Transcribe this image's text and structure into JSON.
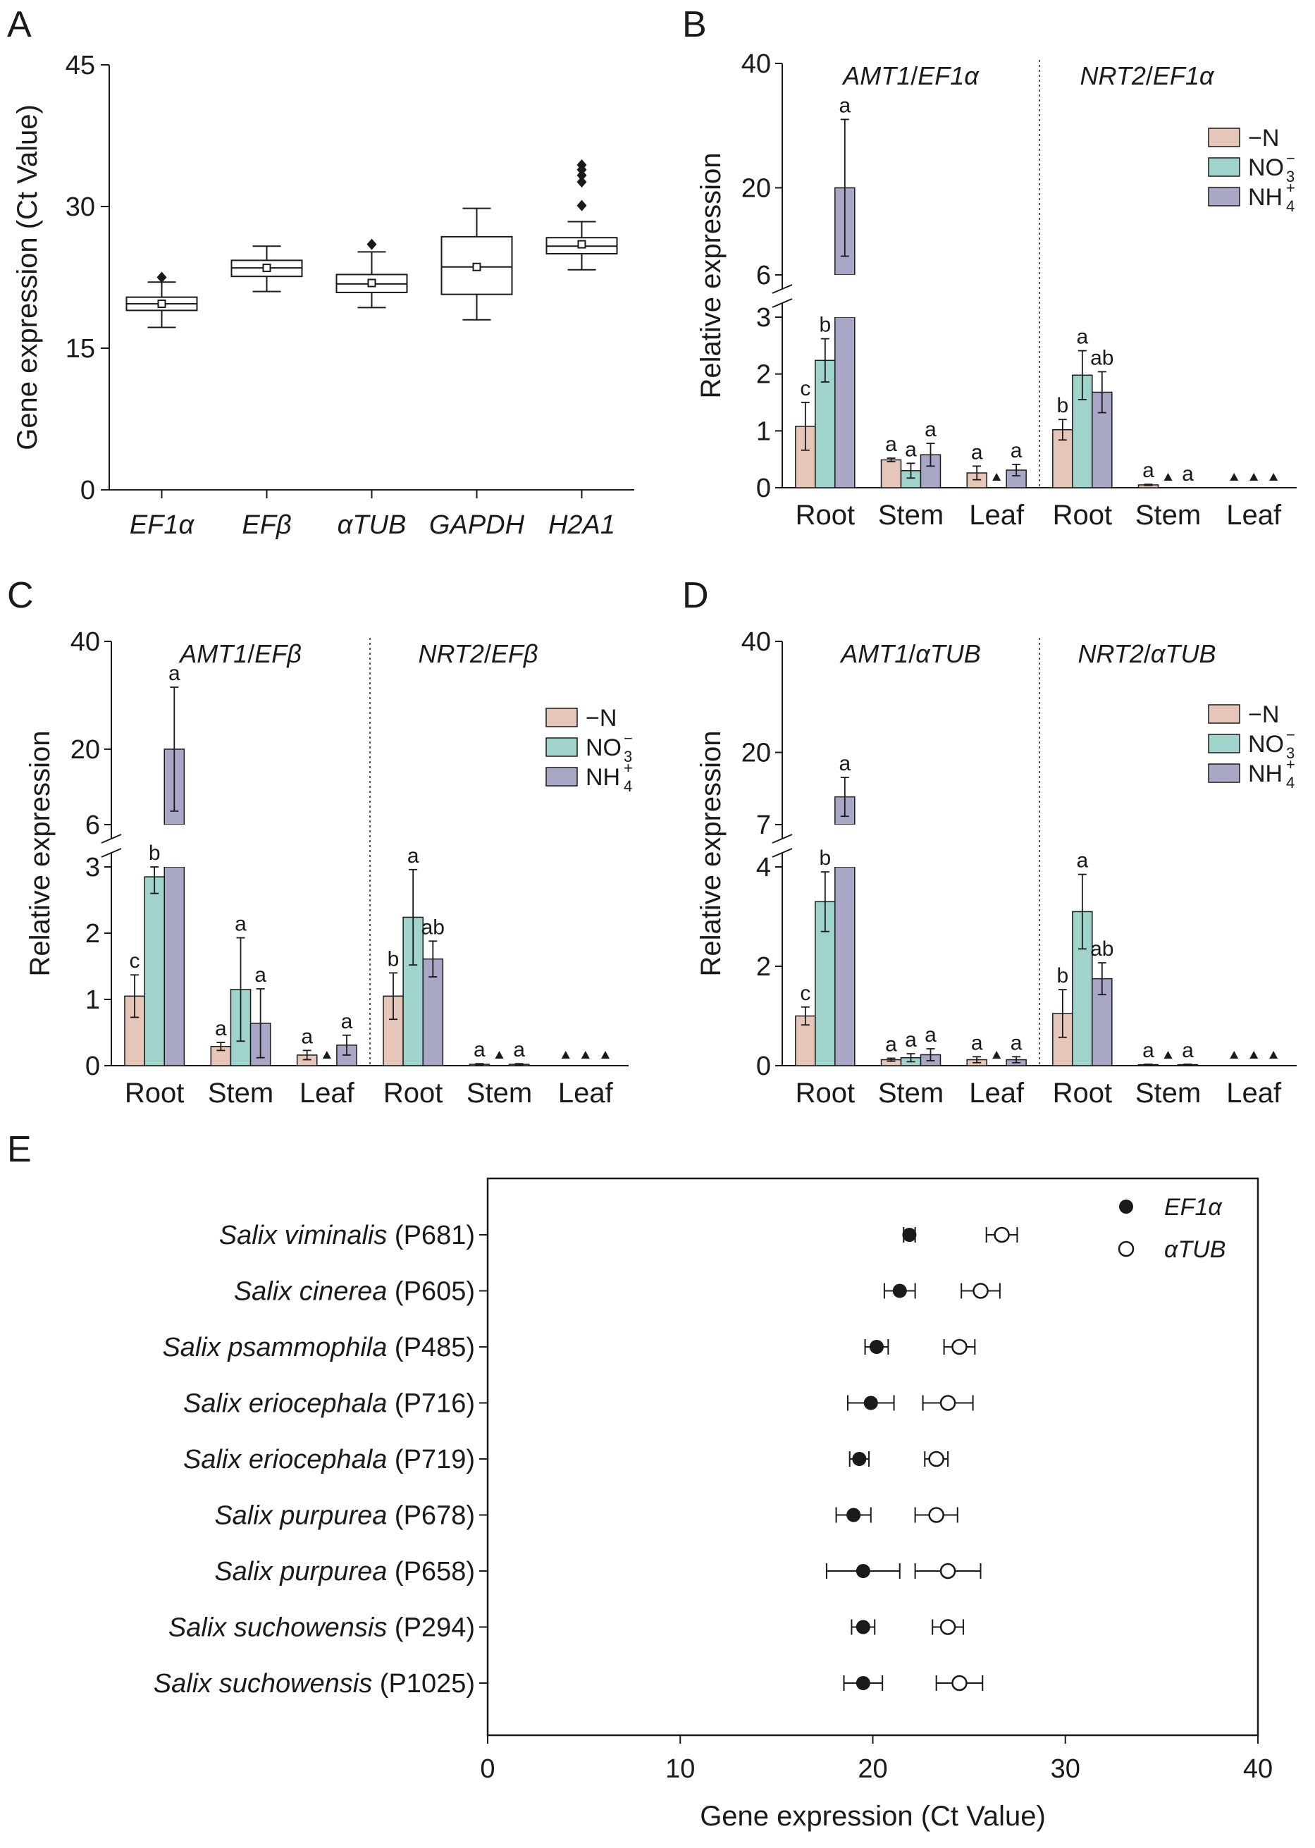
{
  "colors": {
    "n_minus": "#e6c6b8",
    "no3": "#9fd3cc",
    "nh4": "#a9a7c6",
    "ink": "#1a1a1a"
  },
  "legend_labels": {
    "minus_n": "−N",
    "no3": "NO",
    "no3_sub": "3",
    "no3_sup": "−",
    "nh4": "NH",
    "nh4_sub": "4",
    "nh4_sup": "+"
  },
  "chart_data": [
    {
      "panel": "A",
      "type": "box",
      "ylabel": "Gene expression (Ct Value)",
      "ylim": [
        0,
        45
      ],
      "yticks": [
        0,
        15,
        30,
        45
      ],
      "categories": [
        "EF1α",
        "EFβ",
        "αTUB",
        "GAPDH",
        "H2A1"
      ],
      "boxes": [
        {
          "min": 17.2,
          "q1": 19.0,
          "median": 19.7,
          "q3": 20.4,
          "max": 22.0,
          "mean": 19.7,
          "outliers": [
            22.5
          ]
        },
        {
          "min": 21.0,
          "q1": 22.6,
          "median": 23.5,
          "q3": 24.3,
          "max": 25.8,
          "mean": 23.5,
          "outliers": []
        },
        {
          "min": 19.3,
          "q1": 20.9,
          "median": 21.8,
          "q3": 22.8,
          "max": 25.2,
          "mean": 21.9,
          "outliers": [
            26.0
          ]
        },
        {
          "min": 18.0,
          "q1": 20.7,
          "median": 23.6,
          "q3": 26.8,
          "max": 29.8,
          "mean": 23.6,
          "outliers": []
        },
        {
          "min": 23.3,
          "q1": 25.0,
          "median": 25.8,
          "q3": 26.7,
          "max": 28.4,
          "mean": 26.0,
          "outliers": [
            30.1,
            32.6,
            33.3,
            33.9,
            34.4
          ]
        }
      ]
    },
    {
      "panel": "B",
      "type": "bar",
      "ylabel": "Relative expression",
      "upper_ticks": [
        6,
        20,
        40
      ],
      "lower_ticks": [
        0,
        1,
        2,
        3
      ],
      "break_label": "6",
      "groups": [
        {
          "title_gene": "AMT1",
          "title_ref": "EF1α"
        },
        {
          "title_gene": "NRT2",
          "title_ref": "EF1α"
        }
      ],
      "categories": [
        "Root",
        "Stem",
        "Leaf",
        "Root",
        "Stem",
        "Leaf"
      ],
      "series": [
        {
          "name": "−N",
          "values": [
            1.08,
            0.49,
            0.26,
            1.02,
            0.05,
            0
          ],
          "errors": [
            0.42,
            0.03,
            0.12,
            0.18,
            0.01,
            0
          ]
        },
        {
          "name": "NO3−",
          "values": [
            2.24,
            0.3,
            0,
            1.98,
            0,
            0
          ],
          "errors": [
            0.38,
            0.13,
            0,
            0.43,
            0,
            0
          ]
        },
        {
          "name": "NH4+",
          "values": [
            20.0,
            0.58,
            0.31,
            1.68,
            0,
            0
          ],
          "errors": [
            11.0,
            0.2,
            0.1,
            0.36,
            0,
            0
          ]
        }
      ],
      "letters": [
        [
          "c",
          "b",
          "a"
        ],
        [
          "a",
          "a",
          "a"
        ],
        [
          "a",
          "▲",
          "a"
        ],
        [
          "b",
          "a",
          "ab"
        ],
        [
          "a",
          "▲",
          "a"
        ],
        [
          "▲",
          "▲",
          "▲"
        ]
      ]
    },
    {
      "panel": "C",
      "type": "bar",
      "ylabel": "Relative expression",
      "upper_ticks": [
        6,
        20,
        40
      ],
      "lower_ticks": [
        0,
        1,
        2,
        3
      ],
      "break_label": "6",
      "groups": [
        {
          "title_gene": "AMT1",
          "title_ref": "EFβ"
        },
        {
          "title_gene": "NRT2",
          "title_ref": "EFβ"
        }
      ],
      "categories": [
        "Root",
        "Stem",
        "Leaf",
        "Root",
        "Stem",
        "Leaf"
      ],
      "series": [
        {
          "name": "−N",
          "values": [
            1.05,
            0.29,
            0.16,
            1.05,
            0.02,
            0
          ],
          "errors": [
            0.32,
            0.06,
            0.07,
            0.35,
            0.01,
            0
          ]
        },
        {
          "name": "NO3−",
          "values": [
            2.85,
            1.15,
            0,
            2.24,
            0,
            0
          ],
          "errors": [
            0.25,
            0.78,
            0,
            0.72,
            0,
            0
          ]
        },
        {
          "name": "NH4+",
          "values": [
            20.0,
            0.64,
            0.31,
            1.61,
            0.02,
            0
          ],
          "errors": [
            11.5,
            0.52,
            0.15,
            0.27,
            0.01,
            0
          ]
        }
      ],
      "letters": [
        [
          "c",
          "b",
          "a"
        ],
        [
          "a",
          "a",
          "a"
        ],
        [
          "a",
          "▲",
          "a"
        ],
        [
          "b",
          "a",
          "ab"
        ],
        [
          "a",
          "▲",
          "a"
        ],
        [
          "▲",
          "▲",
          "▲"
        ]
      ]
    },
    {
      "panel": "D",
      "type": "bar",
      "ylabel": "Relative expression",
      "upper_ticks": [
        7,
        20,
        40
      ],
      "lower_ticks": [
        0,
        2,
        4
      ],
      "break_label": "7",
      "groups": [
        {
          "title_gene": "AMT1",
          "title_ref": "αTUB"
        },
        {
          "title_gene": "NRT2",
          "title_ref": "αTUB"
        }
      ],
      "categories": [
        "Root",
        "Stem",
        "Leaf",
        "Root",
        "Stem",
        "Leaf"
      ],
      "series": [
        {
          "name": "−N",
          "values": [
            1.0,
            0.12,
            0.12,
            1.05,
            0.02,
            0
          ],
          "errors": [
            0.18,
            0.03,
            0.06,
            0.48,
            0.01,
            0
          ]
        },
        {
          "name": "NO3−",
          "values": [
            3.3,
            0.16,
            0,
            3.1,
            0,
            0
          ],
          "errors": [
            0.6,
            0.08,
            0,
            0.75,
            0,
            0
          ]
        },
        {
          "name": "NH4+",
          "values": [
            12.0,
            0.22,
            0.12,
            1.75,
            0.02,
            0
          ],
          "errors": [
            3.5,
            0.12,
            0.06,
            0.32,
            0.01,
            0
          ]
        }
      ],
      "letters": [
        [
          "c",
          "b",
          "a"
        ],
        [
          "a",
          "a",
          "a"
        ],
        [
          "a",
          "▲",
          "a"
        ],
        [
          "b",
          "a",
          "ab"
        ],
        [
          "a",
          "▲",
          "a"
        ],
        [
          "▲",
          "▲",
          "▲"
        ]
      ]
    },
    {
      "panel": "E",
      "type": "dot-errorbar",
      "xlabel": "Gene expression (Ct Value)",
      "xlim": [
        0,
        40
      ],
      "xticks": [
        0,
        10,
        20,
        30,
        40
      ],
      "legend": [
        "EF1α",
        "αTUB"
      ],
      "rows": [
        {
          "species": "Salix viminalis",
          "code": "(P681)",
          "ef1a": 21.9,
          "ef1a_err": 0.3,
          "atub": 26.7,
          "atub_err": 0.8
        },
        {
          "species": "Salix cinerea",
          "code": "(P605)",
          "ef1a": 21.4,
          "ef1a_err": 0.8,
          "atub": 25.6,
          "atub_err": 1.0
        },
        {
          "species": "Salix psammophila",
          "code": "(P485)",
          "ef1a": 20.2,
          "ef1a_err": 0.6,
          "atub": 24.5,
          "atub_err": 0.8
        },
        {
          "species": "Salix eriocephala",
          "code": "(P716)",
          "ef1a": 19.9,
          "ef1a_err": 1.2,
          "atub": 23.9,
          "atub_err": 1.3
        },
        {
          "species": "Salix eriocephala",
          "code": "(P719)",
          "ef1a": 19.3,
          "ef1a_err": 0.5,
          "atub": 23.3,
          "atub_err": 0.6
        },
        {
          "species": "Salix purpurea",
          "code": "(P678)",
          "ef1a": 19.0,
          "ef1a_err": 0.9,
          "atub": 23.3,
          "atub_err": 1.1
        },
        {
          "species": "Salix purpurea",
          "code": "(P658)",
          "ef1a": 19.5,
          "ef1a_err": 1.9,
          "atub": 23.9,
          "atub_err": 1.7
        },
        {
          "species": "Salix suchowensis",
          "code": "(P294)",
          "ef1a": 19.5,
          "ef1a_err": 0.6,
          "atub": 23.9,
          "atub_err": 0.8
        },
        {
          "species": "Salix suchowensis",
          "code": "(P1025)",
          "ef1a": 19.5,
          "ef1a_err": 1.0,
          "atub": 24.5,
          "atub_err": 1.2
        }
      ]
    }
  ]
}
